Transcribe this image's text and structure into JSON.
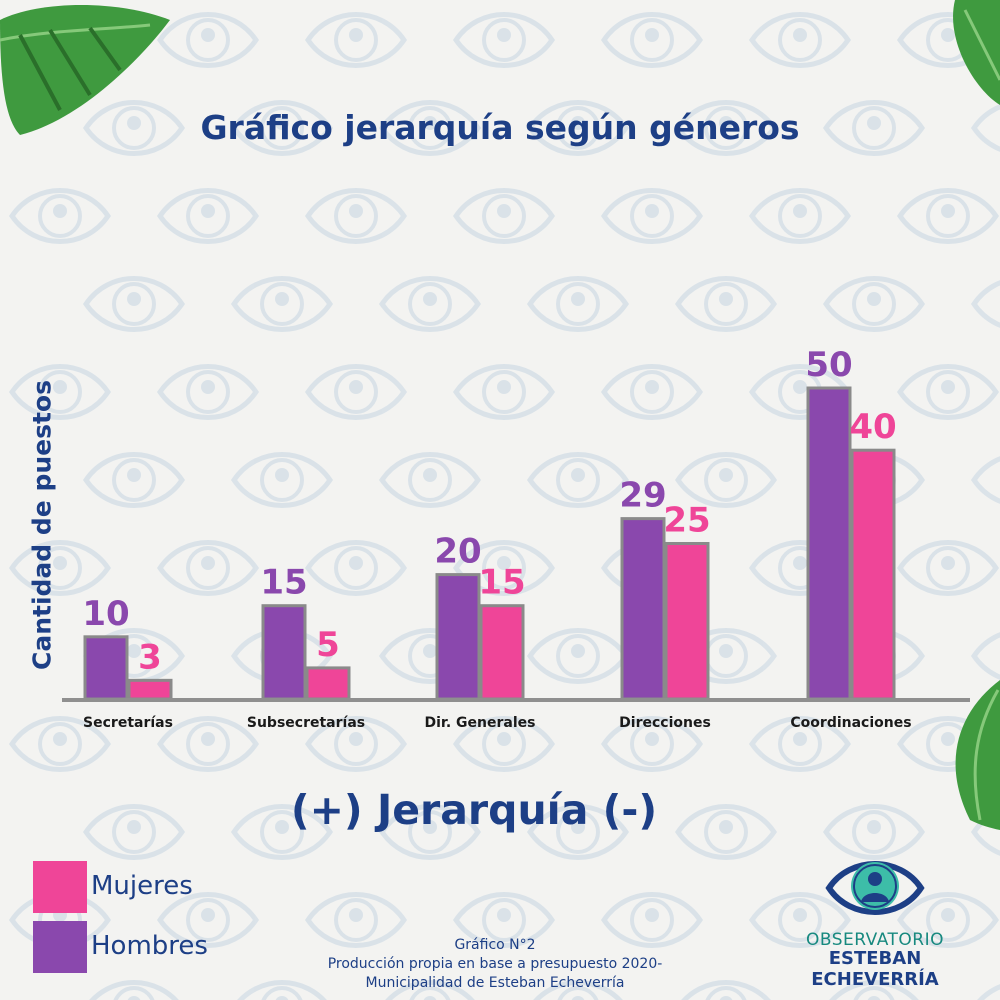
{
  "title": "Gráfico jerarquía según géneros",
  "xtitle": "(+) Jerarquía (-)",
  "colors": {
    "mujeres": "#ef4598",
    "hombres": "#8a48ad",
    "title": "#1d3f86",
    "axis": "#8f8f8f"
  },
  "legend": {
    "mujeres": "Mujeres",
    "hombres": "Hombres"
  },
  "source": {
    "line1": "Gráfico N°2",
    "line2": "Producción propia en base a presupuesto 2020-",
    "line3": "Municipalidad de Esteban Echeverría"
  },
  "logo": {
    "line1": "OBSERVATORIO",
    "line2": "ESTEBAN ECHEVERRÍA",
    "icon": "eye-icon"
  },
  "chart_data": {
    "type": "bar",
    "title": "Gráfico jerarquía según géneros",
    "xlabel": "(+) Jerarquía (-)",
    "ylabel": "Cantidad de puestos",
    "categories": [
      "Secretarías",
      "Subsecretarías",
      "Dir. Generales",
      "Direcciones",
      "Coordinaciones"
    ],
    "series": [
      {
        "name": "Hombres",
        "values": [
          10,
          15,
          20,
          29,
          50
        ]
      },
      {
        "name": "Mujeres",
        "values": [
          3,
          5,
          15,
          25,
          40
        ]
      }
    ],
    "ylim": [
      0,
      50
    ],
    "grid": false,
    "legend": "bottom-left"
  }
}
